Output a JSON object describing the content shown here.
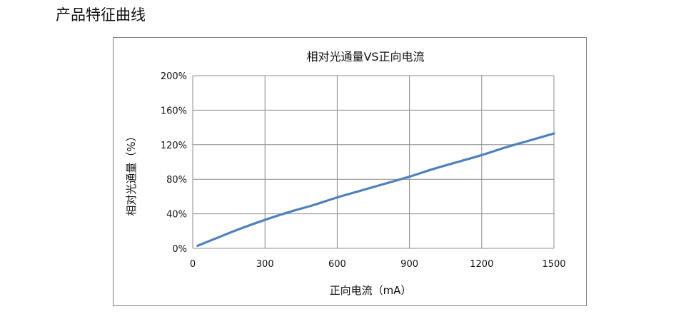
{
  "page": {
    "section_title": "产品特征曲线"
  },
  "chart_data": {
    "type": "line",
    "title": "相对光通量VS正向电流",
    "xlabel": "正向电流（mA）",
    "ylabel": "相对光通量（%）",
    "xlim": [
      0,
      1500
    ],
    "ylim": [
      0,
      200
    ],
    "x_ticks": [
      0,
      300,
      600,
      900,
      1200,
      1500
    ],
    "y_ticks": [
      0,
      40,
      80,
      120,
      160,
      200
    ],
    "y_tick_suffix": "%",
    "grid": true,
    "legend": "none",
    "series": [
      {
        "color": "#4f81bd",
        "x": [
          20,
          100,
          200,
          300,
          400,
          500,
          600,
          700,
          800,
          900,
          1000,
          1100,
          1200,
          1300,
          1400,
          1500
        ],
        "y": [
          3,
          12,
          23,
          33,
          42,
          50,
          59,
          67,
          75,
          83,
          92,
          100,
          108,
          117,
          125,
          133
        ]
      }
    ]
  }
}
